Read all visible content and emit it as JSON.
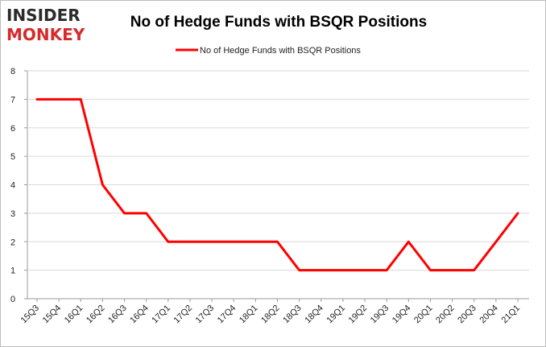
{
  "logo": {
    "line1": "INSIDER",
    "line2": "MONKEY",
    "colors": {
      "dark": "#2b2b2b",
      "red": "#d62b2b"
    }
  },
  "chart_data": {
    "type": "line",
    "title": "No of Hedge Funds with BSQR Positions",
    "xlabel": "",
    "ylabel": "",
    "categories": [
      "15Q3",
      "15Q4",
      "16Q1",
      "16Q2",
      "16Q3",
      "16Q4",
      "17Q1",
      "17Q2",
      "17Q3",
      "17Q4",
      "18Q1",
      "18Q2",
      "18Q3",
      "18Q4",
      "19Q1",
      "19Q2",
      "19Q3",
      "19Q4",
      "20Q1",
      "20Q2",
      "20Q3",
      "20Q4",
      "21Q1"
    ],
    "series": [
      {
        "name": "No of Hedge Funds with BSQR Positions",
        "color": "#ff0000",
        "values": [
          7,
          7,
          7,
          4,
          3,
          3,
          2,
          2,
          2,
          2,
          2,
          2,
          1,
          1,
          1,
          1,
          1,
          2,
          1,
          1,
          1,
          2,
          3
        ]
      }
    ],
    "yticks": [
      "0",
      "1",
      "2",
      "3",
      "4",
      "5",
      "6",
      "7",
      "8"
    ],
    "ylim": [
      0,
      8
    ],
    "grid": true,
    "legend_position": "top"
  }
}
